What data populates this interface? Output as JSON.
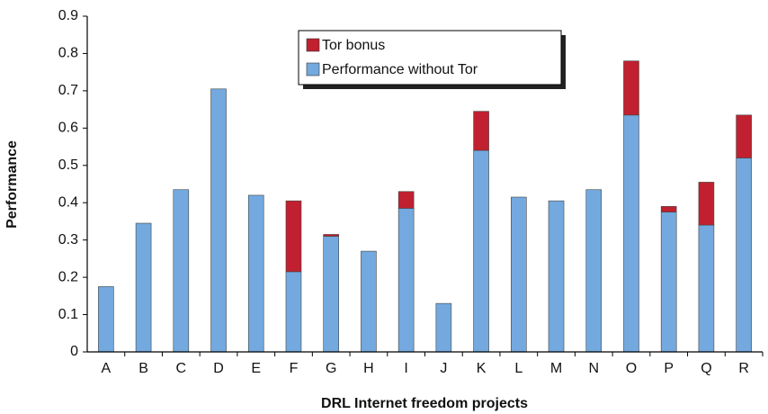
{
  "chart_data": {
    "type": "stacked_bar",
    "x_label": "DRL Internet freedom projects",
    "y_label": "Performance",
    "categories": [
      "A",
      "B",
      "C",
      "D",
      "E",
      "F",
      "G",
      "H",
      "I",
      "J",
      "K",
      "L",
      "M",
      "N",
      "O",
      "P",
      "Q",
      "R"
    ],
    "series": [
      {
        "name": "Performance without Tor",
        "color": "#73a9de",
        "values": [
          0.175,
          0.345,
          0.435,
          0.705,
          0.42,
          0.215,
          0.31,
          0.27,
          0.385,
          0.13,
          0.54,
          0.415,
          0.405,
          0.435,
          0.635,
          0.375,
          0.34,
          0.52
        ]
      },
      {
        "name": "Tor bonus",
        "color": "#c0202f",
        "values": [
          0,
          0,
          0,
          0,
          0,
          0.19,
          0.005,
          0,
          0.045,
          0,
          0.105,
          0,
          0,
          0,
          0.145,
          0.015,
          0.115,
          0.115
        ]
      }
    ],
    "ylim": [
      0,
      0.9
    ],
    "yticks": [
      0,
      0.1,
      0.2,
      0.3,
      0.4,
      0.5,
      0.6,
      0.7,
      0.8,
      0.9
    ],
    "grid": false
  }
}
